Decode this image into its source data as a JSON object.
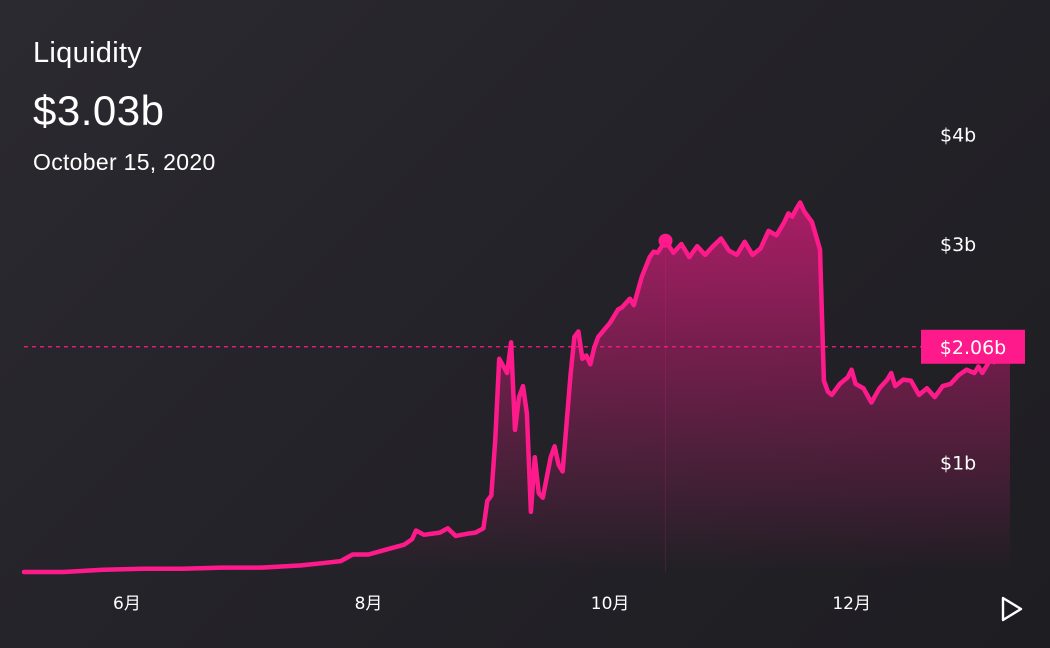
{
  "header": {
    "title": "Liquidity",
    "value": "$3.03b",
    "date": "October 15, 2020"
  },
  "colors": {
    "accent": "#ff1a8c",
    "background": "#242329",
    "text": "#ffffff"
  },
  "current": {
    "label": "$2.06b",
    "value": 2.06
  },
  "highlight": {
    "date": "2020-10-15",
    "value": 3.03
  },
  "play_button": {
    "icon": "play-icon"
  },
  "chart_data": {
    "type": "area",
    "title": "Liquidity",
    "xlabel": "",
    "ylabel": "",
    "ylim": [
      0,
      4.5
    ],
    "xlim": [
      "2020-05-06",
      "2021-01-11"
    ],
    "y_ticks": [
      {
        "value": 1,
        "label": "$1b"
      },
      {
        "value": 3,
        "label": "$3b"
      },
      {
        "value": 4,
        "label": "$4b"
      }
    ],
    "x_ticks": [
      {
        "value": "2020-06-01",
        "label": "6月"
      },
      {
        "value": "2020-08-01",
        "label": "8月"
      },
      {
        "value": "2020-10-01",
        "label": "10月"
      },
      {
        "value": "2020-12-01",
        "label": "12月"
      }
    ],
    "grid": false,
    "series": [
      {
        "points": [
          [
            "2020-05-06",
            0.0
          ],
          [
            "2020-05-16",
            0.0
          ],
          [
            "2020-05-26",
            0.02
          ],
          [
            "2020-06-05",
            0.03
          ],
          [
            "2020-06-15",
            0.03
          ],
          [
            "2020-06-25",
            0.04
          ],
          [
            "2020-07-05",
            0.04
          ],
          [
            "2020-07-15",
            0.06
          ],
          [
            "2020-07-20",
            0.08
          ],
          [
            "2020-07-25",
            0.1
          ],
          [
            "2020-07-28",
            0.16
          ],
          [
            "2020-08-01",
            0.16
          ],
          [
            "2020-08-05",
            0.2
          ],
          [
            "2020-08-10",
            0.25
          ],
          [
            "2020-08-12",
            0.3
          ],
          [
            "2020-08-13",
            0.38
          ],
          [
            "2020-08-15",
            0.34
          ],
          [
            "2020-08-19",
            0.36
          ],
          [
            "2020-08-21",
            0.4
          ],
          [
            "2020-08-23",
            0.33
          ],
          [
            "2020-08-26",
            0.35
          ],
          [
            "2020-08-28",
            0.36
          ],
          [
            "2020-08-30",
            0.4
          ],
          [
            "2020-08-31",
            0.65
          ],
          [
            "2020-09-01",
            0.7
          ],
          [
            "2020-09-02",
            1.2
          ],
          [
            "2020-09-03",
            1.95
          ],
          [
            "2020-09-05",
            1.82
          ],
          [
            "2020-09-06",
            2.1
          ],
          [
            "2020-09-07",
            1.3
          ],
          [
            "2020-09-08",
            1.6
          ],
          [
            "2020-09-09",
            1.7
          ],
          [
            "2020-09-10",
            1.45
          ],
          [
            "2020-09-11",
            0.55
          ],
          [
            "2020-09-12",
            1.05
          ],
          [
            "2020-09-13",
            0.72
          ],
          [
            "2020-09-14",
            0.68
          ],
          [
            "2020-09-16",
            1.05
          ],
          [
            "2020-09-17",
            1.15
          ],
          [
            "2020-09-18",
            0.98
          ],
          [
            "2020-09-19",
            0.92
          ],
          [
            "2020-09-20",
            1.35
          ],
          [
            "2020-09-21",
            1.8
          ],
          [
            "2020-09-22",
            2.15
          ],
          [
            "2020-09-23",
            2.2
          ],
          [
            "2020-09-24",
            1.95
          ],
          [
            "2020-09-25",
            1.98
          ],
          [
            "2020-09-26",
            1.9
          ],
          [
            "2020-09-27",
            2.05
          ],
          [
            "2020-09-28",
            2.15
          ],
          [
            "2020-10-01",
            2.28
          ],
          [
            "2020-10-03",
            2.4
          ],
          [
            "2020-10-04",
            2.42
          ],
          [
            "2020-10-06",
            2.5
          ],
          [
            "2020-10-07",
            2.44
          ],
          [
            "2020-10-09",
            2.7
          ],
          [
            "2020-10-11",
            2.88
          ],
          [
            "2020-10-12",
            2.93
          ],
          [
            "2020-10-13",
            2.92
          ],
          [
            "2020-10-15",
            3.03
          ],
          [
            "2020-10-17",
            2.92
          ],
          [
            "2020-10-19",
            3.0
          ],
          [
            "2020-10-21",
            2.88
          ],
          [
            "2020-10-23",
            2.98
          ],
          [
            "2020-10-25",
            2.9
          ],
          [
            "2020-10-27",
            2.98
          ],
          [
            "2020-10-29",
            3.05
          ],
          [
            "2020-10-31",
            2.94
          ],
          [
            "2020-11-02",
            2.9
          ],
          [
            "2020-11-04",
            3.02
          ],
          [
            "2020-11-06",
            2.9
          ],
          [
            "2020-11-08",
            2.96
          ],
          [
            "2020-11-10",
            3.12
          ],
          [
            "2020-11-12",
            3.08
          ],
          [
            "2020-11-14",
            3.2
          ],
          [
            "2020-11-15",
            3.28
          ],
          [
            "2020-11-16",
            3.25
          ],
          [
            "2020-11-17",
            3.32
          ],
          [
            "2020-11-18",
            3.38
          ],
          [
            "2020-11-19",
            3.3
          ],
          [
            "2020-11-21",
            3.2
          ],
          [
            "2020-11-23",
            2.95
          ],
          [
            "2020-11-24",
            1.75
          ],
          [
            "2020-11-25",
            1.65
          ],
          [
            "2020-11-26",
            1.62
          ],
          [
            "2020-11-28",
            1.72
          ],
          [
            "2020-11-30",
            1.78
          ],
          [
            "2020-12-01",
            1.85
          ],
          [
            "2020-12-02",
            1.72
          ],
          [
            "2020-12-04",
            1.68
          ],
          [
            "2020-12-06",
            1.55
          ],
          [
            "2020-12-08",
            1.68
          ],
          [
            "2020-12-10",
            1.76
          ],
          [
            "2020-12-11",
            1.82
          ],
          [
            "2020-12-12",
            1.7
          ],
          [
            "2020-12-14",
            1.76
          ],
          [
            "2020-12-16",
            1.75
          ],
          [
            "2020-12-18",
            1.62
          ],
          [
            "2020-12-20",
            1.68
          ],
          [
            "2020-12-22",
            1.6
          ],
          [
            "2020-12-24",
            1.7
          ],
          [
            "2020-12-26",
            1.72
          ],
          [
            "2020-12-28",
            1.8
          ],
          [
            "2020-12-30",
            1.85
          ],
          [
            "2021-01-01",
            1.82
          ],
          [
            "2021-01-02",
            1.88
          ],
          [
            "2021-01-03",
            1.82
          ],
          [
            "2021-01-05",
            1.94
          ],
          [
            "2021-01-06",
            1.92
          ],
          [
            "2021-01-07",
            1.98
          ],
          [
            "2021-01-09",
            2.06
          ],
          [
            "2021-01-10",
            2.06
          ]
        ]
      }
    ]
  }
}
